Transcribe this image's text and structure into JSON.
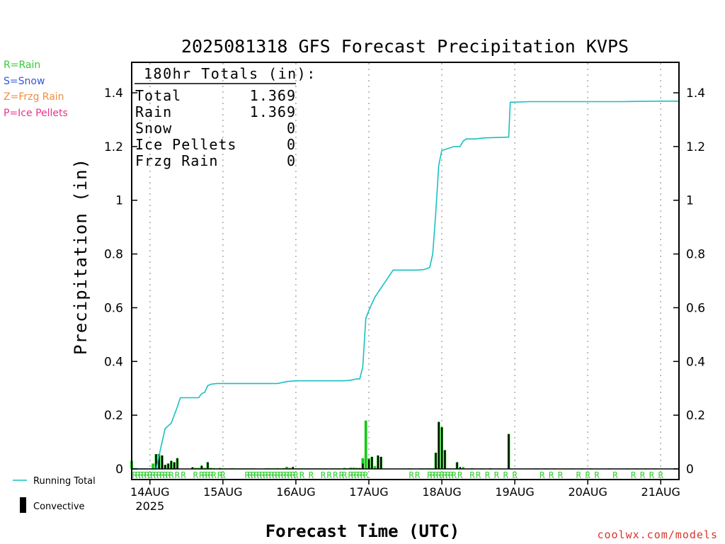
{
  "chart_data": {
    "type": "bar",
    "title": "2025081318 GFS Forecast Precipitation KVPS",
    "xlabel": "Forecast Time (UTC)",
    "ylabel": "Precipitation (in)",
    "ylim": [
      0,
      1.4
    ],
    "yticks": [
      "0",
      "0.2",
      "0.4",
      "0.6",
      "0.8",
      "1",
      "1.2",
      "1.4"
    ],
    "x_range_hours": [
      -6.0,
      174.0
    ],
    "x_ticks": [
      {
        "hour": 0,
        "label": "14AUG",
        "sublabel": "2025"
      },
      {
        "hour": 24,
        "label": "15AUG"
      },
      {
        "hour": 48,
        "label": "16AUG"
      },
      {
        "hour": 72,
        "label": "17AUG"
      },
      {
        "hour": 96,
        "label": "18AUG"
      },
      {
        "hour": 120,
        "label": "19AUG"
      },
      {
        "hour": 144,
        "label": "20AUG"
      },
      {
        "hour": 168,
        "label": "21AUG"
      }
    ],
    "grid": "vertical dotted at day boundaries",
    "totals_box": {
      "header": "180hr Totals (in):",
      "rows": [
        {
          "label": "Total",
          "value": "1.369"
        },
        {
          "label": "Rain",
          "value": "1.369"
        },
        {
          "label": "Snow",
          "value": "0"
        },
        {
          "label": "Ice Pellets",
          "value": "0"
        },
        {
          "label": "Frzg Rain",
          "value": "0"
        }
      ]
    },
    "precip_type_legend": [
      {
        "text": "R=Rain",
        "color": "#33cc33"
      },
      {
        "text": "S=Snow",
        "color": "#3355dd"
      },
      {
        "text": "Z=Frzg Rain",
        "color": "#f08c3c"
      },
      {
        "text": "P=Ice Pellets",
        "color": "#e8338a"
      }
    ],
    "series_legend": [
      {
        "name": "Running Total",
        "color": "#19c0c0",
        "kind": "line"
      },
      {
        "name": "Convective",
        "color": "#000000",
        "kind": "bar"
      }
    ],
    "running_total": {
      "name": "Running Total",
      "color": "#19c0c0",
      "x": [
        -6,
        -1,
        2,
        3,
        4,
        5,
        6,
        7,
        8,
        9,
        10,
        12,
        14,
        16,
        17,
        18,
        19,
        20,
        22,
        24,
        30,
        40,
        42,
        45,
        48,
        56,
        64,
        66,
        68,
        68.5,
        69,
        70,
        71,
        72,
        74,
        80,
        88,
        90,
        91,
        92,
        93,
        94,
        95,
        96,
        100,
        101,
        102,
        103,
        104,
        107,
        110,
        118,
        118.5,
        119,
        125,
        140,
        155,
        162,
        168,
        174
      ],
      "y": [
        0,
        0,
        0,
        0.05,
        0.1,
        0.15,
        0.16,
        0.17,
        0.2,
        0.23,
        0.265,
        0.265,
        0.265,
        0.265,
        0.28,
        0.285,
        0.31,
        0.315,
        0.318,
        0.318,
        0.318,
        0.318,
        0.318,
        0.325,
        0.328,
        0.328,
        0.328,
        0.33,
        0.335,
        0.335,
        0.335,
        0.38,
        0.56,
        0.59,
        0.64,
        0.74,
        0.74,
        0.742,
        0.745,
        0.75,
        0.8,
        0.95,
        1.13,
        1.185,
        1.2,
        1.2,
        1.2,
        1.22,
        1.228,
        1.228,
        1.232,
        1.235,
        1.365,
        1.365,
        1.367,
        1.367,
        1.367,
        1.368,
        1.369,
        1.369
      ]
    },
    "bars": {
      "name": "Precipitation",
      "color": "#11cc11",
      "x": [
        -6,
        1,
        2,
        3,
        4,
        5,
        6,
        7,
        8,
        9,
        14,
        15,
        16,
        17,
        18,
        19,
        20,
        21,
        22,
        23,
        24,
        25,
        26,
        27,
        28,
        29,
        30,
        31,
        32,
        33,
        34,
        38,
        39,
        40,
        41,
        42,
        43,
        44,
        45,
        46,
        47,
        48,
        49,
        50,
        51,
        52,
        53,
        54,
        55,
        56,
        57,
        58,
        60,
        61,
        62,
        64,
        65,
        66,
        67,
        68,
        69,
        70,
        71,
        72,
        73,
        74,
        75,
        76,
        85,
        86,
        89,
        90,
        91,
        92,
        93,
        94,
        95,
        96,
        97,
        98,
        99,
        100,
        101,
        103,
        106,
        109,
        112,
        115,
        118,
        127,
        130,
        133,
        139,
        142,
        145,
        151,
        157,
        160,
        163,
        166
      ],
      "y": [
        0.03,
        0.02,
        0.055,
        0.055,
        0.05,
        0.015,
        0.02,
        0.03,
        0.025,
        0.04,
        0.006,
        0.004,
        0.004,
        0.012,
        0.004,
        0.025,
        0.004,
        0.003,
        0.002,
        0.004,
        0.002,
        0.002,
        0.002,
        0.003,
        0.002,
        0.002,
        0.002,
        0.002,
        0.002,
        0.002,
        0.002,
        0.002,
        0.003,
        0.002,
        0.002,
        0.003,
        0.002,
        0.003,
        0.008,
        0.004,
        0.003,
        0.002,
        0.002,
        0.002,
        0.002,
        0.002,
        0.002,
        0.002,
        0.002,
        0.002,
        0.002,
        0.002,
        0.002,
        0.002,
        0.002,
        0.004,
        0.002,
        0.005,
        0.005,
        0.004,
        0.003,
        0.04,
        0.18,
        0.04,
        0.045,
        0.01,
        0.05,
        0.045,
        0.002,
        0.002,
        0.002,
        0.002,
        0.002,
        0.002,
        0.002,
        0.06,
        0.175,
        0.155,
        0.07,
        0.002,
        0.002,
        0.002,
        0.025,
        0.007,
        0.003,
        0.002,
        0.003,
        0.002,
        0.13,
        0.002,
        0.002,
        0.002,
        0.002,
        0.002,
        0.002,
        0.002,
        0.002,
        0.002,
        0.002,
        0.002
      ]
    },
    "convective": {
      "name": "Convective",
      "color": "#000000",
      "x": [
        2,
        3,
        4,
        5,
        6,
        7,
        8,
        9,
        14,
        17,
        19,
        47,
        69,
        70,
        72,
        73,
        75,
        76,
        94,
        95,
        96,
        97,
        101,
        102,
        118
      ],
      "y": [
        0.055,
        0.055,
        0.05,
        0.015,
        0.02,
        0.03,
        0.025,
        0.04,
        0.006,
        0.012,
        0.025,
        0.008,
        0.003,
        0.02,
        0.035,
        0.045,
        0.05,
        0.045,
        0.06,
        0.175,
        0.155,
        0.07,
        0.025,
        0.007,
        0.13
      ]
    },
    "rain_markers": {
      "letter": "R",
      "color": "#33cc33",
      "x": [
        -5,
        -4,
        -3,
        -2,
        -1,
        0,
        1,
        2,
        3,
        4,
        5,
        6,
        7,
        9,
        11,
        15,
        17,
        18,
        19,
        20,
        21,
        23,
        24,
        32,
        33,
        34,
        35,
        36,
        37,
        38,
        39,
        40,
        41,
        42,
        43,
        44,
        45,
        46,
        47,
        48,
        50,
        53,
        57,
        59,
        61,
        63,
        64,
        66,
        67,
        68,
        69,
        70,
        71,
        86,
        88,
        92,
        93,
        94,
        95,
        96,
        97,
        98,
        99,
        100,
        102,
        106,
        108,
        111,
        114,
        117,
        120,
        129,
        132,
        135,
        141,
        144,
        147,
        153,
        159,
        162,
        165,
        168
      ]
    }
  }
}
